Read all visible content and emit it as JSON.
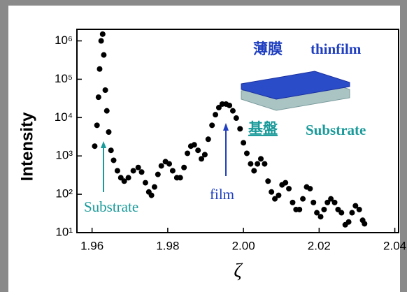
{
  "chart_data": {
    "type": "scatter",
    "x_label": "ζ",
    "y_label": "Intensity",
    "x": [
      1.9607,
      1.9613,
      1.9617,
      1.962,
      1.9624,
      1.9628,
      1.9631,
      1.9635,
      1.9639,
      1.9644,
      1.965,
      1.9657,
      1.9667,
      1.9676,
      1.9685,
      1.9696,
      1.9709,
      1.9722,
      1.9731,
      1.9741,
      1.975,
      1.9757,
      1.9765,
      1.9774,
      1.9783,
      1.9794,
      1.9804,
      1.9813,
      1.9824,
      1.9833,
      1.9843,
      1.9852,
      1.9861,
      1.987,
      1.988,
      1.9889,
      1.9898,
      1.9907,
      1.9917,
      1.9926,
      1.9935,
      1.9944,
      1.9954,
      1.9963,
      1.9972,
      1.9981,
      1.9991,
      2.0,
      2.0009,
      2.0019,
      2.0028,
      2.0037,
      2.0046,
      2.0056,
      2.0065,
      2.0074,
      2.0083,
      2.0093,
      2.0102,
      2.0111,
      2.012,
      2.013,
      2.0139,
      2.0148,
      2.0157,
      2.0167,
      2.0176,
      2.0185,
      2.0194,
      2.0204,
      2.0213,
      2.0222,
      2.0231,
      2.0241,
      2.025,
      2.0259,
      2.0269,
      2.0278,
      2.0287,
      2.0296,
      2.0306,
      2.0315,
      2.032
    ],
    "values": [
      1800,
      6300,
      34000,
      185000,
      1000000,
      1500000,
      430000,
      52000,
      15000,
      4200,
      1400,
      770,
      410,
      270,
      220,
      270,
      410,
      500,
      380,
      200,
      115,
      94,
      155,
      330,
      550,
      710,
      620,
      410,
      270,
      270,
      500,
      1170,
      1800,
      1950,
      1400,
      840,
      1080,
      2730,
      6300,
      11900,
      18200,
      22500,
      22500,
      20700,
      15000,
      9700,
      5100,
      2200,
      1170,
      620,
      410,
      620,
      840,
      620,
      220,
      115,
      76,
      94,
      176,
      200,
      140,
      61,
      40,
      40,
      76,
      155,
      140,
      61,
      33,
      26,
      40,
      61,
      76,
      61,
      40,
      33,
      16,
      19,
      33,
      50,
      40,
      21,
      17
    ],
    "color": "#000000",
    "xlim": [
      1.956,
      2.041
    ],
    "xticks": [
      1.96,
      1.98,
      {
        "value": 2,
        "label": "2.00"
      },
      2.02,
      2.04
    ],
    "ylim": [
      10,
      2000000
    ],
    "log_y": true,
    "yticks": [
      {
        "value": 10,
        "label": "10¹"
      },
      {
        "value": 100,
        "label": "10²"
      },
      {
        "value": 1000,
        "label": "10³"
      },
      {
        "value": 10000,
        "label": "10⁴"
      },
      {
        "value": 100000,
        "label": "10⁵"
      },
      {
        "value": 1000000,
        "label": "10⁶"
      }
    ],
    "annotations": [
      {
        "text": "薄膜",
        "color": "#1f3fc0"
      },
      {
        "text": "thinfilm",
        "color": "#1f3fc0"
      },
      {
        "text": "基盤",
        "color": "#1a9a9a"
      },
      {
        "text": "Substrate",
        "color": "#1a9a9a"
      },
      {
        "text": "film",
        "color": "#1f3fc0"
      },
      {
        "text": "Substrate",
        "color": "#1a9a9a"
      }
    ]
  }
}
